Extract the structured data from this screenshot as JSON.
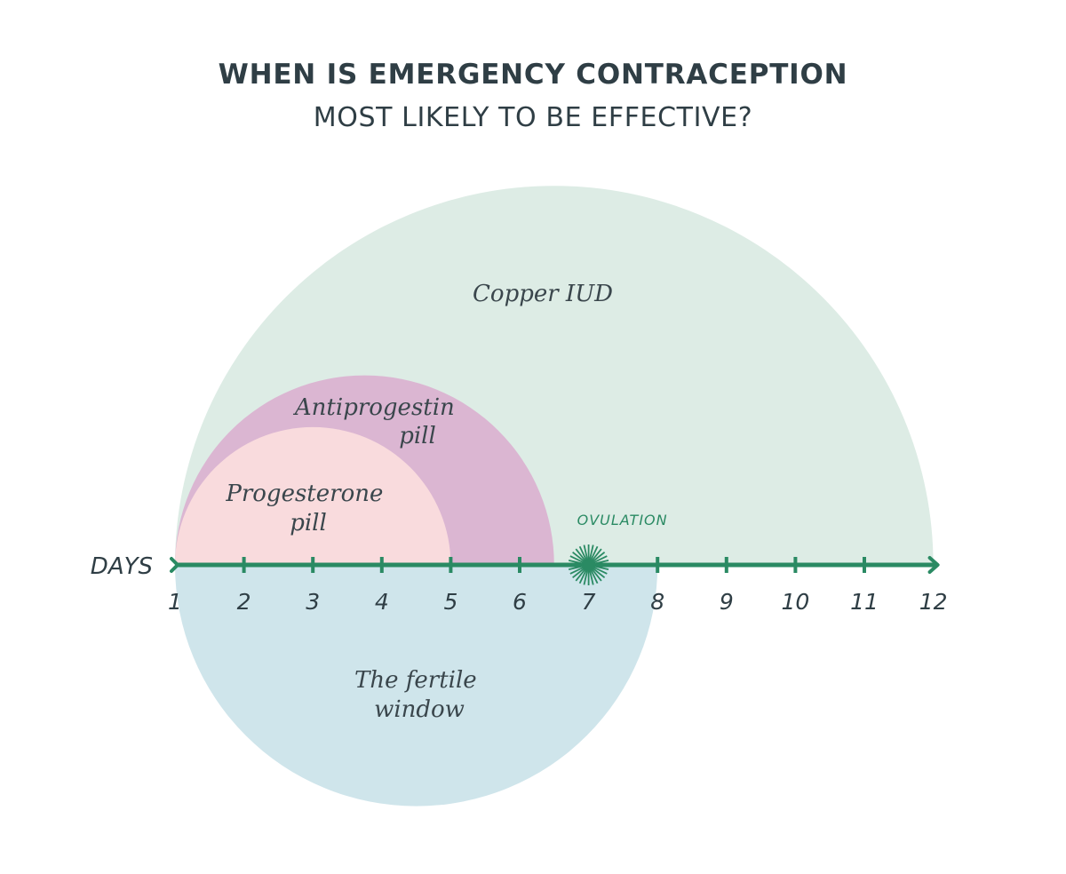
{
  "title": {
    "line1": "WHEN IS EMERGENCY CONTRACEPTION",
    "line2": "MOST LIKELY TO BE EFFECTIVE?"
  },
  "axis": {
    "label": "DAYS",
    "ticks": [
      "1",
      "2",
      "3",
      "4",
      "5",
      "6",
      "7",
      "8",
      "9",
      "10",
      "11",
      "12"
    ]
  },
  "regions": {
    "copper_iud": {
      "lines": [
        "Copper IUD"
      ],
      "start_day": 1,
      "end_day": 12,
      "color": "#ddece5"
    },
    "antiprogestin": {
      "lines": [
        "Antiprogestin",
        "pill"
      ],
      "start_day": 1,
      "end_day": 6.5,
      "color": "#dbb6d2"
    },
    "progesterone": {
      "lines": [
        "Progesterone",
        "pill"
      ],
      "start_day": 1,
      "end_day": 5,
      "color": "#f9dbdd"
    },
    "fertile_window": {
      "lines": [
        "The fertile",
        "window"
      ],
      "start_day": 1,
      "end_day": 8,
      "color": "#cfe5eb"
    }
  },
  "ovulation": {
    "label": "OVULATION",
    "day": 7
  },
  "colors": {
    "axis": "#2a8a63",
    "title": "#2f3e45"
  }
}
